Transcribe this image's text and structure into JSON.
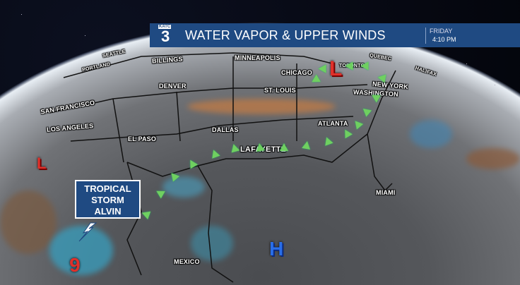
{
  "header": {
    "logo": "KATC 3",
    "title": "WATER VAPOR & UPPER WINDS",
    "day": "FRIDAY",
    "time": "4:10 PM",
    "color": "#1f4a82"
  },
  "cities": [
    "SEATTLE",
    "PORTLAND",
    "BILLINGS",
    "MINNEAPOLIS",
    "CHICAGO",
    "TORONTO",
    "QUEBEC",
    "HALIFAX",
    "NEW YORK",
    "WASHINGTON",
    "ST. LOUIS",
    "DENVER",
    "SAN FRANCISCO",
    "LOS ANGELES",
    "EL PASO",
    "DALLAS",
    "ATLANTA",
    "LAFAYETTE",
    "MIAMI",
    "MEXICO"
  ],
  "pressure": {
    "low": "L",
    "high": "H"
  },
  "storm": {
    "line1": "TROPICAL",
    "line2": "STORM",
    "line3": "ALVIN",
    "icon": "hurricane-icon"
  },
  "colors": {
    "low": "#e0302a",
    "high": "#2a6ee8",
    "front": "#6fd060"
  }
}
